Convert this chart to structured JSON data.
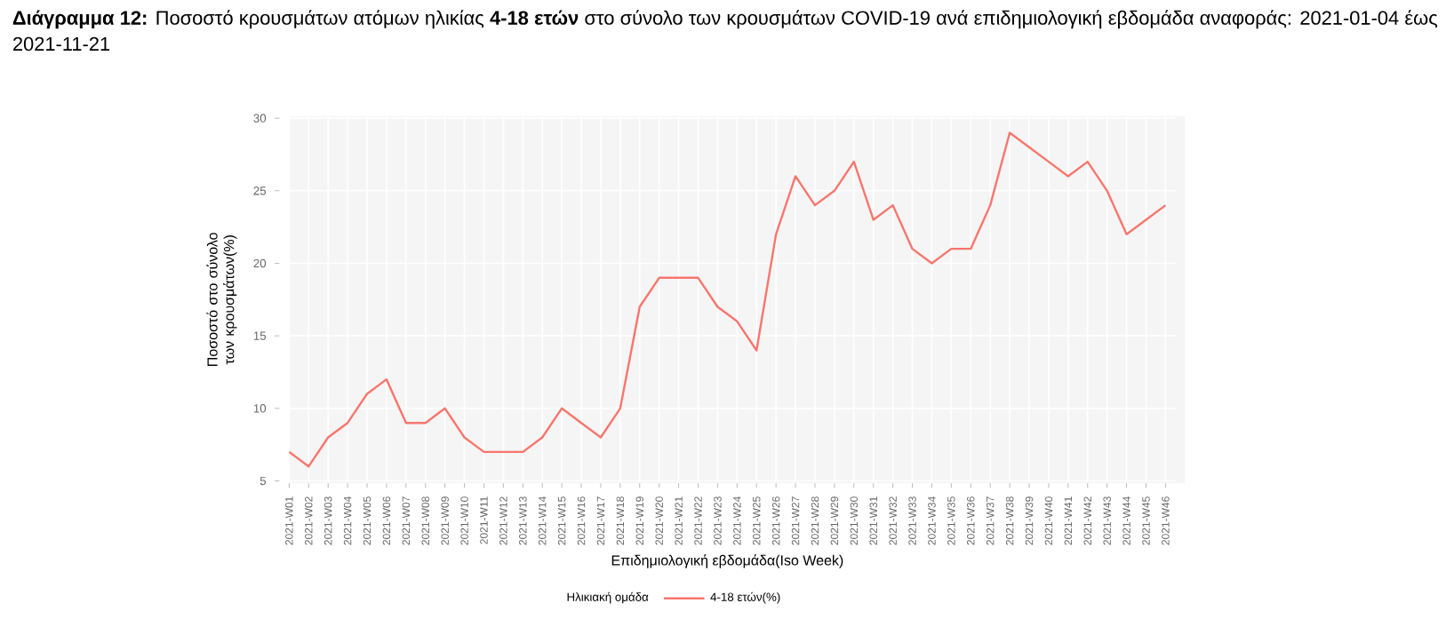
{
  "chart_data": {
    "type": "line",
    "title": "**Διάγραμμα 12:** Ποσοστό κρουσμάτων ατόμων ηλικίας **4-18 ετών** στο σύνολο των κρουσμάτων COVID-19 ανά επιδημιολογική εβδομάδα αναφοράς: 2021-01-04 έως 2021-11-21",
    "xlabel": "Επιδημιολογική εβδομάδα(Iso Week)",
    "ylabel": "Ποσοστό στο σύνολο των κρουσμάτων(%)",
    "legend_title": "Ηλικιακή ομάδα",
    "categories": [
      "2021-W01",
      "2021-W02",
      "2021-W03",
      "2021-W04",
      "2021-W05",
      "2021-W06",
      "2021-W07",
      "2021-W08",
      "2021-W09",
      "2021-W10",
      "2021-W11",
      "2021-W12",
      "2021-W13",
      "2021-W14",
      "2021-W15",
      "2021-W16",
      "2021-W17",
      "2021-W18",
      "2021-W19",
      "2021-W20",
      "2021-W21",
      "2021-W22",
      "2021-W23",
      "2021-W24",
      "2021-W25",
      "2021-W26",
      "2021-W27",
      "2021-W28",
      "2021-W29",
      "2021-W30",
      "2021-W31",
      "2021-W32",
      "2021-W33",
      "2021-W34",
      "2021-W35",
      "2021-W36",
      "2021-W37",
      "2021-W38",
      "2021-W39",
      "2021-W40",
      "2021-W41",
      "2021-W42",
      "2021-W43",
      "2021-W44",
      "2021-W45",
      "2021-W46"
    ],
    "series": [
      {
        "name": "4-18 ετών(%)",
        "color": "#f8766d",
        "values": [
          7,
          6,
          8,
          9,
          11,
          12,
          9,
          9,
          10,
          8,
          7,
          7,
          7,
          8,
          10,
          9,
          8,
          10,
          17,
          19,
          19,
          19,
          17,
          16,
          14,
          22,
          26,
          24,
          25,
          27,
          23,
          24,
          21,
          20,
          21,
          21,
          24,
          29,
          28,
          27,
          26,
          27,
          25,
          22,
          23,
          24
        ]
      }
    ],
    "ylim": [
      4.85,
      30.15
    ],
    "yticks": [
      5,
      10,
      15,
      20,
      25,
      30
    ],
    "grid": true,
    "legend": "bottom",
    "marker": "none",
    "line_style": "solid"
  }
}
